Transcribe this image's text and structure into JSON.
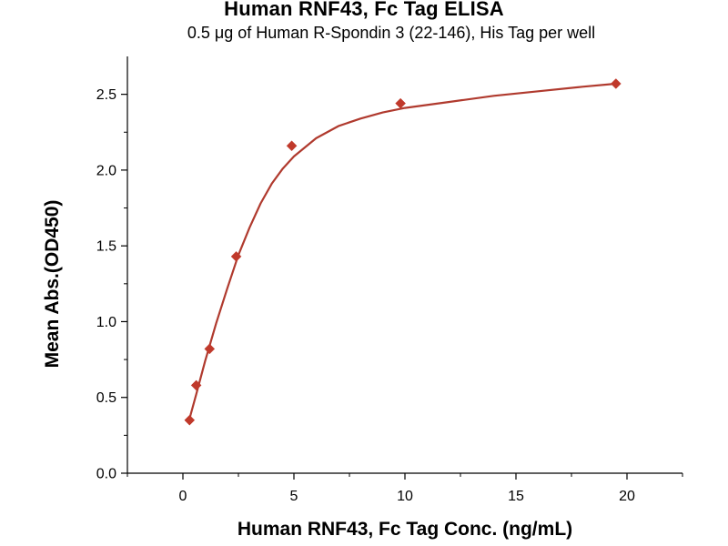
{
  "chart_data": {
    "type": "scatter",
    "title": "Human RNF43, Fc Tag ELISA",
    "subtitle": "0.5 μg of Human R-Spondin 3 (22-146), His Tag per well",
    "xlabel": "Human RNF43, Fc Tag Conc. (ng/mL)",
    "ylabel": "Mean Abs.(OD450)",
    "xlim": [
      -2.5,
      22.5
    ],
    "ylim": [
      0,
      2.75
    ],
    "xticks": [
      0,
      5,
      10,
      15,
      20
    ],
    "yticks": [
      0.0,
      0.5,
      1.0,
      1.5,
      2.0,
      2.5
    ],
    "ytick_labels": [
      "0.0",
      "0.5",
      "1.0",
      "1.5",
      "2.0",
      "2.5"
    ],
    "grid": false,
    "series": [
      {
        "marker": "diamond",
        "color": "#C0392B",
        "points": [
          {
            "x": 0.3,
            "y": 0.35
          },
          {
            "x": 0.6,
            "y": 0.58
          },
          {
            "x": 1.2,
            "y": 0.82
          },
          {
            "x": 2.4,
            "y": 1.43
          },
          {
            "x": 4.9,
            "y": 2.16
          },
          {
            "x": 9.8,
            "y": 2.44
          },
          {
            "x": 19.5,
            "y": 2.57
          }
        ]
      }
    ],
    "fit_curve": {
      "color": "#B03A2E",
      "points": [
        {
          "x": 0.3,
          "y": 0.36
        },
        {
          "x": 0.6,
          "y": 0.52
        },
        {
          "x": 1.0,
          "y": 0.74
        },
        {
          "x": 1.5,
          "y": 0.99
        },
        {
          "x": 2.0,
          "y": 1.22
        },
        {
          "x": 2.5,
          "y": 1.44
        },
        {
          "x": 3.0,
          "y": 1.62
        },
        {
          "x": 3.5,
          "y": 1.78
        },
        {
          "x": 4.0,
          "y": 1.91
        },
        {
          "x": 4.5,
          "y": 2.01
        },
        {
          "x": 5.0,
          "y": 2.09
        },
        {
          "x": 6.0,
          "y": 2.21
        },
        {
          "x": 7.0,
          "y": 2.29
        },
        {
          "x": 8.0,
          "y": 2.34
        },
        {
          "x": 9.0,
          "y": 2.38
        },
        {
          "x": 10.0,
          "y": 2.41
        },
        {
          "x": 12.0,
          "y": 2.45
        },
        {
          "x": 14.0,
          "y": 2.49
        },
        {
          "x": 16.0,
          "y": 2.52
        },
        {
          "x": 18.0,
          "y": 2.55
        },
        {
          "x": 19.5,
          "y": 2.57
        }
      ]
    }
  }
}
